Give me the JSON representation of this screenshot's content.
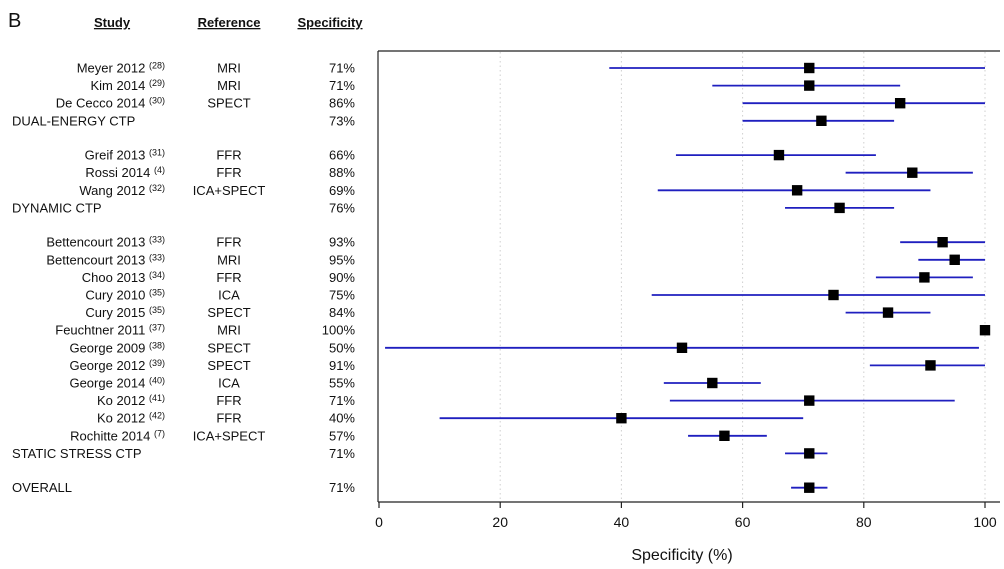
{
  "chart_data": {
    "type": "forest",
    "panel_label": "B",
    "headers": {
      "study": "Study",
      "reference": "Reference",
      "specificity": "Specificity"
    },
    "xlabel": "Specificity (%)",
    "xlim": [
      0,
      100
    ],
    "xticks": [
      "0",
      "20",
      "40",
      "60",
      "80",
      "100"
    ],
    "grid": true,
    "marker_color": "#000000",
    "ci_color": "#1f1fbf",
    "rows": [
      {
        "study": "Meyer 2012",
        "ref_num": "(28)",
        "reference": "MRI",
        "spec_label": "71%",
        "value": 71,
        "ci": [
          38,
          100
        ]
      },
      {
        "study": "Kim 2014",
        "ref_num": "(29)",
        "reference": "MRI",
        "spec_label": "71%",
        "value": 71,
        "ci": [
          55,
          86
        ]
      },
      {
        "study": "De Cecco 2014",
        "ref_num": "(30)",
        "reference": "SPECT",
        "spec_label": "86%",
        "value": 86,
        "ci": [
          60,
          100
        ]
      },
      {
        "study": "DUAL-ENERGY CTP",
        "ref_num": "",
        "reference": "",
        "spec_label": "73%",
        "value": 73,
        "ci": [
          60,
          85
        ],
        "subtotal": true,
        "gap_after": true
      },
      {
        "study": "Greif 2013",
        "ref_num": "(31)",
        "reference": "FFR",
        "spec_label": "66%",
        "value": 66,
        "ci": [
          49,
          82
        ]
      },
      {
        "study": "Rossi 2014",
        "ref_num": "(4)",
        "reference": "FFR",
        "spec_label": "88%",
        "value": 88,
        "ci": [
          77,
          98
        ]
      },
      {
        "study": "Wang 2012",
        "ref_num": "(32)",
        "reference": "ICA+SPECT",
        "spec_label": "69%",
        "value": 69,
        "ci": [
          46,
          91
        ]
      },
      {
        "study": "DYNAMIC CTP",
        "ref_num": "",
        "reference": "",
        "spec_label": "76%",
        "value": 76,
        "ci": [
          67,
          85
        ],
        "subtotal": true,
        "gap_after": true
      },
      {
        "study": "Bettencourt 2013",
        "ref_num": "(33)",
        "reference": "FFR",
        "spec_label": "93%",
        "value": 93,
        "ci": [
          86,
          100
        ]
      },
      {
        "study": "Bettencourt 2013",
        "ref_num": "(33)",
        "reference": "MRI",
        "spec_label": "95%",
        "value": 95,
        "ci": [
          89,
          100
        ]
      },
      {
        "study": "Choo 2013",
        "ref_num": "(34)",
        "reference": "FFR",
        "spec_label": "90%",
        "value": 90,
        "ci": [
          82,
          98
        ]
      },
      {
        "study": "Cury 2010",
        "ref_num": "(35)",
        "reference": "ICA",
        "spec_label": "75%",
        "value": 75,
        "ci": [
          45,
          100
        ]
      },
      {
        "study": "Cury 2015",
        "ref_num": "(35)",
        "reference": "SPECT",
        "spec_label": "84%",
        "value": 84,
        "ci": [
          77,
          91
        ]
      },
      {
        "study": "Feuchtner 2011",
        "ref_num": "(37)",
        "reference": "MRI",
        "spec_label": "100%",
        "value": 100,
        "ci": [
          100,
          100
        ]
      },
      {
        "study": "George 2009",
        "ref_num": "(38)",
        "reference": "SPECT",
        "spec_label": "50%",
        "value": 50,
        "ci": [
          1,
          99
        ]
      },
      {
        "study": "George 2012",
        "ref_num": "(39)",
        "reference": "SPECT",
        "spec_label": "91%",
        "value": 91,
        "ci": [
          81,
          100
        ]
      },
      {
        "study": "George 2014",
        "ref_num": "(40)",
        "reference": "ICA",
        "spec_label": "55%",
        "value": 55,
        "ci": [
          47,
          63
        ]
      },
      {
        "study": "Ko 2012",
        "ref_num": "(41)",
        "reference": "FFR",
        "spec_label": "71%",
        "value": 71,
        "ci": [
          48,
          95
        ]
      },
      {
        "study": "Ko 2012",
        "ref_num": "(42)",
        "reference": "FFR",
        "spec_label": "40%",
        "value": 40,
        "ci": [
          10,
          70
        ]
      },
      {
        "study": "Rochitte 2014",
        "ref_num": "(7)",
        "reference": "ICA+SPECT",
        "spec_label": "57%",
        "value": 57,
        "ci": [
          51,
          64
        ]
      },
      {
        "study": "STATIC STRESS CTP",
        "ref_num": "",
        "reference": "",
        "spec_label": "71%",
        "value": 71,
        "ci": [
          67,
          74
        ],
        "subtotal": true,
        "gap_after": true
      },
      {
        "study": "OVERALL",
        "ref_num": "",
        "reference": "",
        "spec_label": "71%",
        "value": 71,
        "ci": [
          68,
          74
        ],
        "subtotal": true
      }
    ]
  }
}
